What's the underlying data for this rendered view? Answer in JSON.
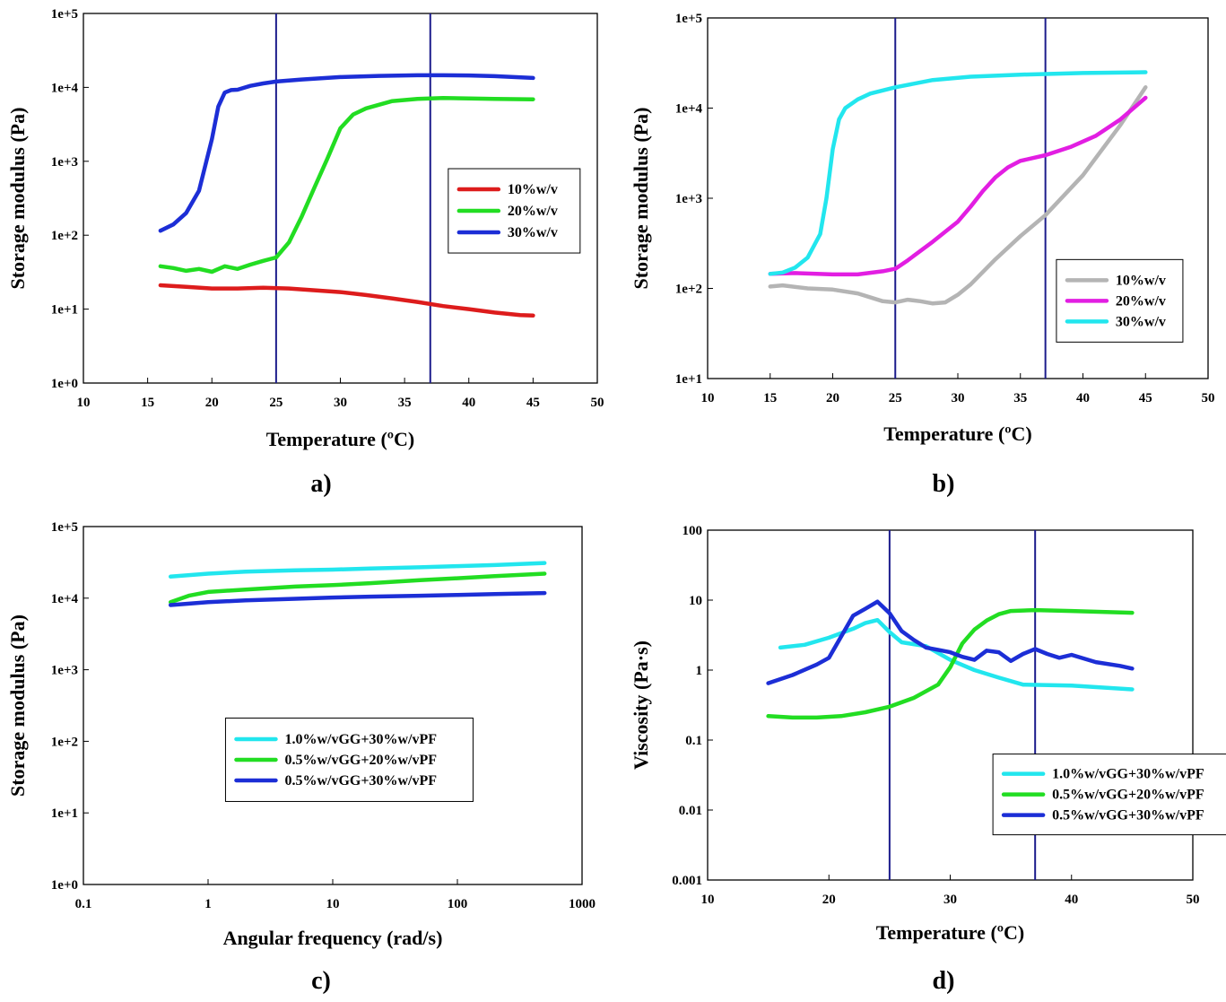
{
  "figure": {
    "panels": [
      {
        "id": "a",
        "panel_label": "a)",
        "xlabel": "Temperature (ºC)",
        "ylabel": "Storage modulus (Pa)",
        "xscale": "linear",
        "yscale": "log",
        "xlim": [
          10,
          50
        ],
        "ylim": [
          1,
          100000
        ],
        "xticks": [
          10,
          15,
          20,
          25,
          30,
          35,
          40,
          45,
          50
        ],
        "xtick_labels": [
          "10",
          "15",
          "20",
          "25",
          "30",
          "35",
          "40",
          "45",
          "50"
        ],
        "yticks": [
          1,
          10,
          100,
          1000,
          10000,
          100000
        ],
        "ytick_labels": [
          "1e+0",
          "1e+1",
          "1e+2",
          "1e+3",
          "1e+4",
          "1e+5"
        ],
        "vlines": [
          25,
          37
        ],
        "vline_color": "#1c1c8c",
        "legend": "right",
        "legend_pos": [
          0.71,
          0.42
        ],
        "series": [
          {
            "name": "10%w/v",
            "color": "#dd1c1c",
            "x": [
              16,
              18,
              20,
              22,
              24,
              26,
              28,
              30,
              32,
              34,
              36,
              38,
              40,
              42,
              44,
              45
            ],
            "y": [
              21,
              20,
              19,
              19,
              19.5,
              19,
              18,
              17,
              15.5,
              14,
              12.5,
              11,
              10,
              9,
              8.3,
              8.2
            ]
          },
          {
            "name": "20%w/v",
            "color": "#22dd22",
            "x": [
              16,
              17,
              18,
              19,
              20,
              21,
              22,
              23,
              24,
              25,
              26,
              27,
              28,
              29,
              30,
              31,
              32,
              34,
              36,
              38,
              40,
              42,
              45
            ],
            "y": [
              38,
              36,
              33,
              35,
              32,
              38,
              35,
              40,
              45,
              50,
              80,
              180,
              450,
              1100,
              2800,
              4300,
              5200,
              6500,
              7000,
              7200,
              7100,
              7000,
              6900
            ]
          },
          {
            "name": "30%w/v",
            "color": "#1c2ed6",
            "x": [
              16,
              17,
              18,
              19,
              20,
              20.5,
              21,
              21.5,
              22,
              23,
              24,
              25,
              27,
              30,
              33,
              36,
              38,
              40,
              42,
              45
            ],
            "y": [
              115,
              140,
              200,
              400,
              2000,
              5500,
              8500,
              9200,
              9300,
              10500,
              11300,
              12000,
              12800,
              13800,
              14300,
              14600,
              14600,
              14500,
              14200,
              13400
            ]
          }
        ]
      },
      {
        "id": "b",
        "panel_label": "b)",
        "xlabel": "Temperature (ºC)",
        "ylabel": "Storage modulus (Pa)",
        "xscale": "linear",
        "yscale": "log",
        "xlim": [
          10,
          50
        ],
        "ylim": [
          10,
          100000
        ],
        "xticks": [
          10,
          15,
          20,
          25,
          30,
          35,
          40,
          45,
          50
        ],
        "xtick_labels": [
          "10",
          "15",
          "20",
          "25",
          "30",
          "35",
          "40",
          "45",
          "50"
        ],
        "yticks": [
          10,
          100,
          1000,
          10000,
          100000
        ],
        "ytick_labels": [
          "1e+1",
          "1e+2",
          "1e+3",
          "1e+4",
          "1e+5"
        ],
        "vlines": [
          25,
          37
        ],
        "vline_color": "#1c1c8c",
        "legend": "lower-right",
        "legend_pos": [
          0.697,
          0.67
        ],
        "series": [
          {
            "name": "10%w/v",
            "color": "#b4b4b4",
            "x": [
              15,
              16,
              18,
              20,
              22,
              24,
              25,
              26,
              27,
              28,
              29,
              30,
              31,
              33,
              35,
              37,
              40,
              43,
              45
            ],
            "y": [
              105,
              108,
              100,
              97,
              88,
              72,
              70,
              75,
              72,
              68,
              70,
              85,
              110,
              210,
              380,
              650,
              1800,
              6500,
              17000
            ]
          },
          {
            "name": "20%w/v",
            "color": "#e21ee2",
            "x": [
              15,
              17,
              20,
              22,
              24,
              25,
              26,
              28,
              30,
              31,
              32,
              33,
              34,
              35,
              37,
              39,
              41,
              43,
              45
            ],
            "y": [
              145,
              148,
              143,
              143,
              155,
              165,
              205,
              330,
              550,
              800,
              1200,
              1700,
              2200,
              2600,
              3000,
              3700,
              4900,
              7500,
              13000
            ]
          },
          {
            "name": "30%w/v",
            "color": "#22e6ee",
            "x": [
              15,
              16,
              17,
              18,
              19,
              19.5,
              20,
              20.5,
              21,
              22,
              23,
              25,
              28,
              31,
              35,
              40,
              45
            ],
            "y": [
              145,
              150,
              170,
              220,
              400,
              1000,
              3500,
              7500,
              10000,
              12500,
              14500,
              17000,
              20500,
              22300,
              23500,
              24500,
              25000
            ]
          }
        ]
      },
      {
        "id": "c",
        "panel_label": "c)",
        "xlabel": "Angular frequency (rad/s)",
        "ylabel": "Storage modulus (Pa)",
        "xscale": "log",
        "yscale": "log",
        "xlim": [
          0.1,
          1000
        ],
        "ylim": [
          1,
          100000
        ],
        "xticks": [
          0.1,
          1,
          10,
          100,
          1000
        ],
        "xtick_labels": [
          "0.1",
          "1",
          "10",
          "100",
          "1000"
        ],
        "yticks": [
          1,
          10,
          100,
          1000,
          10000,
          100000
        ],
        "ytick_labels": [
          "1e+0",
          "1e+1",
          "1e+2",
          "1e+3",
          "1e+4",
          "1e+5"
        ],
        "vlines": [],
        "legend": "center",
        "legend_pos": [
          0.285,
          0.535
        ],
        "series": [
          {
            "name": "1.0%w/vGG+30%w/vPF",
            "color": "#22e6ee",
            "x": [
              0.5,
              1,
              2,
              5,
              10,
              20,
              50,
              100,
              200,
              500
            ],
            "y": [
              20000,
              22000,
              23500,
              24500,
              25000,
              26000,
              27000,
              28000,
              29000,
              31000
            ]
          },
          {
            "name": "0.5%w/vGG+20%w/vPF",
            "color": "#22dd22",
            "x": [
              0.5,
              0.7,
              1,
              2,
              5,
              10,
              20,
              50,
              100,
              200,
              500
            ],
            "y": [
              8800,
              10800,
              12200,
              13200,
              14500,
              15200,
              16200,
              17800,
              19000,
              20300,
              22000
            ]
          },
          {
            "name": "0.5%w/vGG+30%w/vPF",
            "color": "#1c2ed6",
            "x": [
              0.5,
              1,
              2,
              5,
              10,
              20,
              50,
              100,
              200,
              500
            ],
            "y": [
              8000,
              8800,
              9300,
              9800,
              10200,
              10500,
              10800,
              11100,
              11400,
              11800
            ]
          }
        ]
      },
      {
        "id": "d",
        "panel_label": "d)",
        "xlabel": "Temperature (ºC)",
        "ylabel": "Viscosity (Pa·s)",
        "xscale": "linear",
        "yscale": "log",
        "xlim": [
          10,
          50
        ],
        "ylim": [
          0.001,
          100
        ],
        "xticks": [
          10,
          20,
          30,
          40,
          50
        ],
        "xtick_labels": [
          "10",
          "20",
          "30",
          "40",
          "50"
        ],
        "yticks": [
          0.001,
          0.01,
          0.1,
          1,
          10,
          100
        ],
        "ytick_labels": [
          "0.001",
          "0.01",
          "0.1",
          "1",
          "10",
          "100"
        ],
        "vlines": [
          25,
          37
        ],
        "vline_color": "#1c1c8c",
        "legend": "lower-right",
        "legend_pos": [
          0.588,
          0.64
        ],
        "series": [
          {
            "name": "1.0%w/vGG+30%w/vPF",
            "color": "#22e6ee",
            "x": [
              16,
              18,
              20,
              22,
              23,
              24,
              25,
              26,
              28,
              30,
              32,
              34,
              36,
              40,
              45
            ],
            "y": [
              2.1,
              2.3,
              2.9,
              3.9,
              4.7,
              5.2,
              3.5,
              2.5,
              2.2,
              1.4,
              1.0,
              0.78,
              0.62,
              0.6,
              0.53
            ]
          },
          {
            "name": "0.5%w/vGG+20%w/vPF",
            "color": "#22dd22",
            "x": [
              15,
              17,
              19,
              21,
              23,
              25,
              27,
              29,
              30,
              31,
              32,
              33,
              34,
              35,
              37,
              40,
              45
            ],
            "y": [
              0.22,
              0.21,
              0.21,
              0.22,
              0.25,
              0.3,
              0.4,
              0.62,
              1.1,
              2.4,
              3.8,
              5.1,
              6.3,
              7.0,
              7.2,
              7.0,
              6.6
            ]
          },
          {
            "name": "0.5%w/vGG+30%w/vPF",
            "color": "#1c2ed6",
            "x": [
              15,
              17,
              19,
              20,
              21,
              22,
              23,
              24,
              25,
              26,
              27,
              28,
              29,
              30,
              31,
              32,
              33,
              34,
              35,
              36,
              37,
              38,
              39,
              40,
              42,
              44,
              45
            ],
            "y": [
              0.65,
              0.85,
              1.2,
              1.5,
              3.0,
              6.0,
              7.5,
              9.5,
              6.5,
              3.6,
              2.7,
              2.1,
              1.95,
              1.8,
              1.55,
              1.4,
              1.9,
              1.8,
              1.35,
              1.7,
              2.0,
              1.7,
              1.5,
              1.65,
              1.3,
              1.15,
              1.05
            ]
          }
        ]
      }
    ]
  },
  "chart_data": [
    {
      "type": "line",
      "panel": "a)",
      "xlabel": "Temperature (ºC)",
      "ylabel": "Storage modulus (Pa)",
      "xlim": [
        10,
        50
      ],
      "ylim": [
        1,
        100000
      ],
      "yscale": "log",
      "series": [
        {
          "name": "10%w/v",
          "x": [
            16,
            20,
            25,
            30,
            35,
            40,
            45
          ],
          "values": [
            21,
            19,
            19.5,
            17,
            14,
            10,
            8.2
          ]
        },
        {
          "name": "20%w/v",
          "x": [
            16,
            20,
            25,
            28,
            30,
            32,
            35,
            40,
            45
          ],
          "values": [
            38,
            32,
            50,
            450,
            2800,
            5200,
            6700,
            7100,
            6900
          ]
        },
        {
          "name": "30%w/v",
          "x": [
            16,
            18,
            20,
            21,
            25,
            30,
            35,
            40,
            45
          ],
          "values": [
            115,
            200,
            2000,
            8500,
            12000,
            13800,
            14500,
            14500,
            13400
          ]
        }
      ]
    },
    {
      "type": "line",
      "panel": "b)",
      "xlabel": "Temperature (ºC)",
      "ylabel": "Storage modulus (Pa)",
      "xlim": [
        10,
        50
      ],
      "ylim": [
        10,
        100000
      ],
      "yscale": "log",
      "series": [
        {
          "name": "10%w/v",
          "x": [
            15,
            20,
            25,
            29,
            33,
            37,
            40,
            45
          ],
          "values": [
            105,
            97,
            70,
            70,
            210,
            650,
            1800,
            17000
          ]
        },
        {
          "name": "20%w/v",
          "x": [
            15,
            20,
            25,
            30,
            35,
            37,
            41,
            45
          ],
          "values": [
            145,
            143,
            165,
            550,
            2600,
            3000,
            4900,
            13000
          ]
        },
        {
          "name": "30%w/v",
          "x": [
            15,
            18,
            20,
            21,
            25,
            30,
            35,
            40,
            45
          ],
          "values": [
            145,
            220,
            3500,
            10000,
            17000,
            22000,
            23500,
            24500,
            25000
          ]
        }
      ]
    },
    {
      "type": "line",
      "panel": "c)",
      "xlabel": "Angular frequency (rad/s)",
      "ylabel": "Storage modulus (Pa)",
      "xlim": [
        0.1,
        1000
      ],
      "ylim": [
        1,
        100000
      ],
      "xscale": "log",
      "yscale": "log",
      "series": [
        {
          "name": "1.0%w/vGG+30%w/vPF",
          "x": [
            0.5,
            1,
            10,
            100,
            500
          ],
          "values": [
            20000,
            22000,
            25000,
            28000,
            31000
          ]
        },
        {
          "name": "0.5%w/vGG+20%w/vPF",
          "x": [
            0.5,
            1,
            10,
            100,
            500
          ],
          "values": [
            8800,
            12200,
            15200,
            19000,
            22000
          ]
        },
        {
          "name": "0.5%w/vGG+30%w/vPF",
          "x": [
            0.5,
            1,
            10,
            100,
            500
          ],
          "values": [
            8000,
            8800,
            10200,
            11100,
            11800
          ]
        }
      ]
    },
    {
      "type": "line",
      "panel": "d)",
      "xlabel": "Temperature (ºC)",
      "ylabel": "Viscosity (Pa·s)",
      "xlim": [
        10,
        50
      ],
      "ylim": [
        0.001,
        100
      ],
      "yscale": "log",
      "series": [
        {
          "name": "1.0%w/vGG+30%w/vPF",
          "x": [
            16,
            20,
            24,
            26,
            30,
            35,
            40,
            45
          ],
          "values": [
            2.1,
            2.9,
            5.2,
            2.5,
            1.4,
            0.7,
            0.6,
            0.53
          ]
        },
        {
          "name": "0.5%w/vGG+20%w/vPF",
          "x": [
            15,
            20,
            25,
            29,
            31,
            35,
            40,
            45
          ],
          "values": [
            0.22,
            0.21,
            0.3,
            0.62,
            2.4,
            7.0,
            7.0,
            6.6
          ]
        },
        {
          "name": "0.5%w/vGG+30%w/vPF",
          "x": [
            15,
            20,
            22,
            24,
            26,
            30,
            35,
            37,
            40,
            45
          ],
          "values": [
            0.65,
            1.5,
            6.0,
            9.5,
            3.6,
            1.8,
            1.35,
            2.0,
            1.65,
            1.05
          ]
        }
      ]
    }
  ]
}
